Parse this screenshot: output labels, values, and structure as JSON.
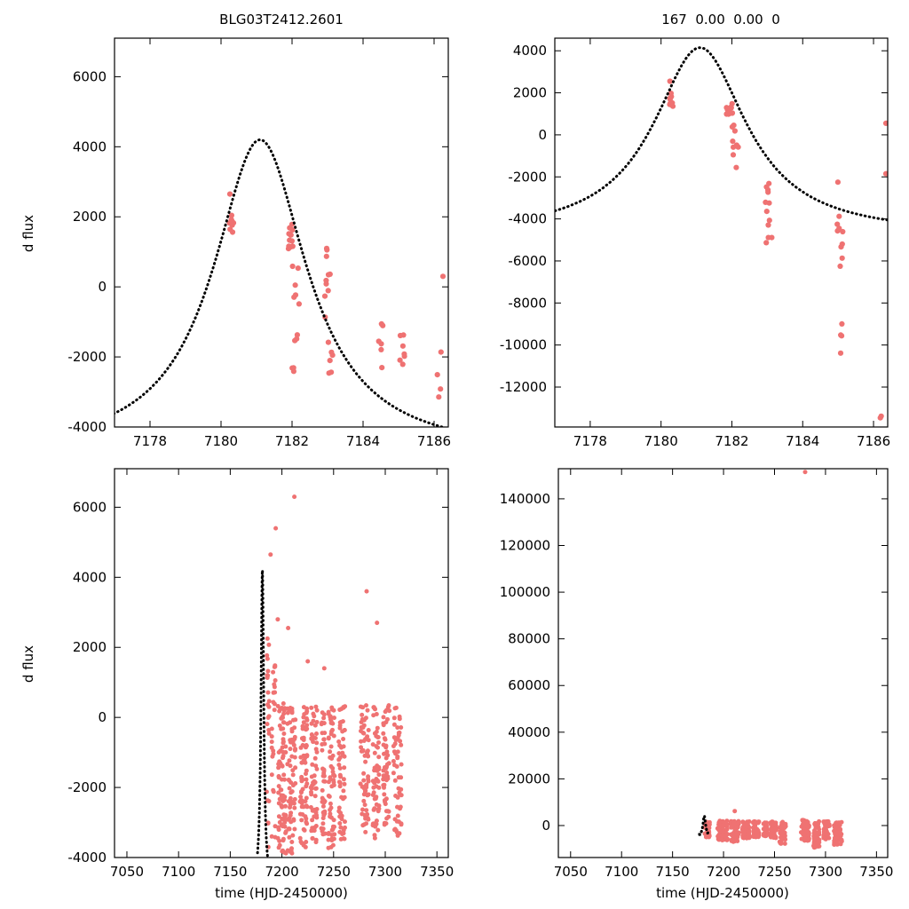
{
  "colors": {
    "points": "#ef7272",
    "model": "#000000",
    "frame": "#000000"
  },
  "chart_data": [
    {
      "type": "scatter",
      "title": "BLG03T2412.2601",
      "xlabel": "",
      "ylabel": "d flux",
      "xlim": [
        7177.0,
        7186.4
      ],
      "ylim": [
        -4000,
        7100
      ],
      "xticks": [
        7178,
        7180,
        7182,
        7184,
        7186
      ],
      "yticks": [
        -4000,
        -2000,
        0,
        2000,
        4000,
        6000
      ],
      "model": {
        "type": "lorentzian",
        "t0": 7181.1,
        "peak": 4200,
        "baseline": -4800,
        "width": 1.6,
        "trange": [
          7176.4,
          7186.4
        ]
      },
      "clusters": [
        {
          "x": 7180.3,
          "xs": 0.07,
          "ymin": 1450,
          "ymax": 2150,
          "n": 9
        },
        {
          "x": 7181.95,
          "xs": 0.1,
          "ymin": 1050,
          "ymax": 1800,
          "n": 12
        },
        {
          "x": 7182.1,
          "xs": 0.1,
          "ymin": -1600,
          "ymax": 1000,
          "n": 9
        },
        {
          "x": 7182.05,
          "xs": 0.05,
          "ymin": -2500,
          "ymax": -2250,
          "n": 3
        },
        {
          "x": 7183.0,
          "xs": 0.1,
          "ymin": -1150,
          "ymax": 1250,
          "n": 10
        },
        {
          "x": 7183.1,
          "xs": 0.08,
          "ymin": -2550,
          "ymax": -1450,
          "n": 6
        },
        {
          "x": 7184.5,
          "xs": 0.07,
          "ymin": -2500,
          "ymax": -1050,
          "n": 6
        },
        {
          "x": 7185.1,
          "xs": 0.07,
          "ymin": -2650,
          "ymax": -700,
          "n": 7
        },
        {
          "x": 7186.15,
          "xs": 0.07,
          "ymin": -3450,
          "ymax": -1750,
          "n": 4
        }
      ],
      "points": [
        [
          7180.25,
          2650
        ],
        [
          7186.25,
          300
        ]
      ]
    },
    {
      "type": "scatter",
      "title": "167  0.00  0.00  0",
      "xlabel": "",
      "ylabel": "",
      "xlim": [
        7177.0,
        7186.4
      ],
      "ylim": [
        -13900,
        4600
      ],
      "xticks": [
        7178,
        7180,
        7182,
        7184,
        7186
      ],
      "yticks": [
        -12000,
        -10000,
        -8000,
        -6000,
        -4000,
        -2000,
        0,
        2000,
        4000
      ],
      "model": {
        "type": "lorentzian",
        "t0": 7181.1,
        "peak": 4150,
        "baseline": -4800,
        "width": 1.6,
        "trange": [
          7176.4,
          7186.4
        ]
      },
      "clusters": [
        {
          "x": 7180.3,
          "xs": 0.07,
          "ymin": 1350,
          "ymax": 2050,
          "n": 9
        },
        {
          "x": 7181.95,
          "xs": 0.1,
          "ymin": 950,
          "ymax": 1750,
          "n": 12
        },
        {
          "x": 7182.1,
          "xs": 0.1,
          "ymin": -1650,
          "ymax": 900,
          "n": 9
        },
        {
          "x": 7183.05,
          "xs": 0.1,
          "ymin": -5300,
          "ymax": -1900,
          "n": 12
        },
        {
          "x": 7185.05,
          "xs": 0.08,
          "ymin": -7600,
          "ymax": -2000,
          "n": 10
        },
        {
          "x": 7185.1,
          "xs": 0.05,
          "ymin": -10400,
          "ymax": -8600,
          "n": 4
        },
        {
          "x": 7186.2,
          "xs": 0.08,
          "ymin": -13600,
          "ymax": -13100,
          "n": 2
        }
      ],
      "points": [
        [
          7180.25,
          2550
        ],
        [
          7186.35,
          550
        ],
        [
          7186.35,
          -1850
        ]
      ]
    },
    {
      "type": "scatter",
      "title": "",
      "xlabel": "time (HJD-2450000)",
      "ylabel": "d flux",
      "xlim": [
        7038,
        7361
      ],
      "ylim": [
        -4000,
        7100
      ],
      "xticks": [
        7050,
        7100,
        7150,
        7200,
        7250,
        7300,
        7350
      ],
      "yticks": [
        -4000,
        -2000,
        0,
        2000,
        4000,
        6000
      ],
      "model": {
        "type": "lorentzian",
        "t0": 7181.1,
        "peak": 4200,
        "baseline": -4800,
        "width": 1.6,
        "trange": [
          7176.4,
          7186.4
        ]
      },
      "clusters": [
        {
          "x": 7186.5,
          "xs": 1.5,
          "ymin": -3800,
          "ymax": 2300,
          "n": 22
        },
        {
          "x": 7192,
          "xs": 2.0,
          "ymin": -3500,
          "ymax": 1500,
          "n": 25
        },
        {
          "x": 7200,
          "xs": 4.0,
          "ymin": -3900,
          "ymax": 400,
          "n": 85
        },
        {
          "x": 7209,
          "xs": 4.0,
          "ymin": -3900,
          "ymax": 400,
          "n": 70
        },
        {
          "x": 7221,
          "xs": 3.5,
          "ymin": -3800,
          "ymax": 350,
          "n": 75
        },
        {
          "x": 7231,
          "xs": 3.0,
          "ymin": -3600,
          "ymax": 350,
          "n": 60
        },
        {
          "x": 7240,
          "xs": 2.0,
          "ymin": -3500,
          "ymax": 350,
          "n": 40
        },
        {
          "x": 7248,
          "xs": 3.0,
          "ymin": -3800,
          "ymax": 350,
          "n": 60
        },
        {
          "x": 7258,
          "xs": 3.0,
          "ymin": -3500,
          "ymax": 350,
          "n": 55
        },
        {
          "x": 7280,
          "xs": 4.0,
          "ymin": -3300,
          "ymax": 350,
          "n": 65
        },
        {
          "x": 7291,
          "xs": 3.0,
          "ymin": -3500,
          "ymax": 350,
          "n": 55
        },
        {
          "x": 7301,
          "xs": 3.0,
          "ymin": -3300,
          "ymax": 350,
          "n": 50
        },
        {
          "x": 7312,
          "xs": 4.0,
          "ymin": -3400,
          "ymax": 350,
          "n": 55
        }
      ],
      "points": [
        [
          7212,
          6300
        ],
        [
          7194,
          5400
        ],
        [
          7189,
          4650
        ],
        [
          7196,
          2800
        ],
        [
          7186,
          2250
        ],
        [
          7206,
          2550
        ],
        [
          7225,
          1600
        ],
        [
          7241,
          1400
        ],
        [
          7282,
          3600
        ],
        [
          7292,
          2700
        ]
      ]
    },
    {
      "type": "scatter",
      "title": "",
      "xlabel": "time (HJD-2450000)",
      "ylabel": "",
      "xlim": [
        7038,
        7361
      ],
      "ylim": [
        -13700,
        152900
      ],
      "xticks": [
        7050,
        7100,
        7150,
        7200,
        7250,
        7300,
        7350
      ],
      "yticks": [
        0,
        20000,
        40000,
        60000,
        80000,
        100000,
        120000,
        140000
      ],
      "model": {
        "type": "lorentzian",
        "t0": 7181.1,
        "peak": 4150,
        "baseline": -4800,
        "width": 1.6,
        "trange": [
          7176.4,
          7186.4
        ]
      },
      "clusters": [
        {
          "x": 7184,
          "xs": 2.5,
          "ymin": -5000,
          "ymax": 1500,
          "n": 40
        },
        {
          "x": 7199,
          "xs": 5.0,
          "ymin": -6500,
          "ymax": 2000,
          "n": 95
        },
        {
          "x": 7211,
          "xs": 4.0,
          "ymin": -7000,
          "ymax": 2000,
          "n": 70
        },
        {
          "x": 7222,
          "xs": 3.5,
          "ymin": -5500,
          "ymax": 1800,
          "n": 60
        },
        {
          "x": 7232,
          "xs": 3.0,
          "ymin": -5000,
          "ymax": 1800,
          "n": 50
        },
        {
          "x": 7241,
          "xs": 2.0,
          "ymin": -4500,
          "ymax": 1500,
          "n": 35
        },
        {
          "x": 7249,
          "xs": 3.0,
          "ymin": -5500,
          "ymax": 1800,
          "n": 55
        },
        {
          "x": 7258,
          "xs": 3.0,
          "ymin": -9000,
          "ymax": 1800,
          "n": 50
        },
        {
          "x": 7280,
          "xs": 4.0,
          "ymin": -6500,
          "ymax": 2500,
          "n": 60
        },
        {
          "x": 7291,
          "xs": 3.0,
          "ymin": -9500,
          "ymax": 1800,
          "n": 50
        },
        {
          "x": 7301,
          "xs": 3.0,
          "ymin": -6000,
          "ymax": 1800,
          "n": 45
        },
        {
          "x": 7312,
          "xs": 4.0,
          "ymin": -8500,
          "ymax": 1800,
          "n": 50
        }
      ],
      "points": [
        [
          7280,
          151500
        ],
        [
          7211,
          6200
        ]
      ]
    }
  ]
}
